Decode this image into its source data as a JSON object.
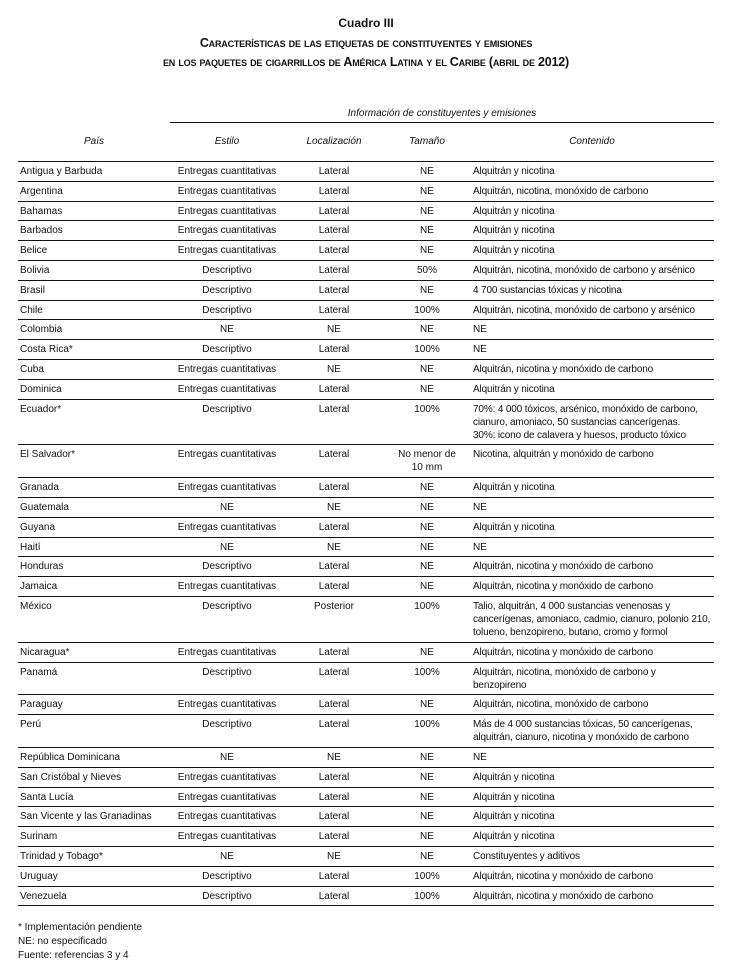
{
  "title": {
    "label": "Cuadro III",
    "line1": "Características de las etiquetas de constituyentes y emisiones",
    "line2": "en los paquetes de cigarrillos de América Latina y el Caribe (abril de 2012)"
  },
  "table": {
    "span_header": "Información de constituyentes y emisiones",
    "headers": {
      "pais": "País",
      "estilo": "Estilo",
      "localizacion": "Localización",
      "tamano": "Tamaño",
      "contenido": "Contenido"
    },
    "rows": [
      {
        "pais": "Antigua y Barbuda",
        "estilo": "Entregas cuantitativas",
        "localizacion": "Lateral",
        "tamano": [
          "NE"
        ],
        "contenido": [
          "Alquitrán y nicotina"
        ]
      },
      {
        "pais": "Argentina",
        "estilo": "Entregas cuantitativas",
        "localizacion": "Lateral",
        "tamano": [
          "NE"
        ],
        "contenido": [
          "Alquitrán, nicotina, monóxido de carbono"
        ]
      },
      {
        "pais": "Bahamas",
        "estilo": "Entregas cuantitativas",
        "localizacion": "Lateral",
        "tamano": [
          "NE"
        ],
        "contenido": [
          "Alquitrán y nicotina"
        ]
      },
      {
        "pais": "Barbados",
        "estilo": "Entregas cuantitativas",
        "localizacion": "Lateral",
        "tamano": [
          "NE"
        ],
        "contenido": [
          "Alquitrán y nicotina"
        ]
      },
      {
        "pais": "Belice",
        "estilo": "Entregas cuantitativas",
        "localizacion": "Lateral",
        "tamano": [
          "NE"
        ],
        "contenido": [
          "Alquitrán y nicotina"
        ]
      },
      {
        "pais": "Bolivia",
        "estilo": "Descriptivo",
        "localizacion": "Lateral",
        "tamano": [
          "50%"
        ],
        "contenido": [
          "Alquitrán, nicotina, monóxido de carbono y arsénico"
        ]
      },
      {
        "pais": "Brasil",
        "estilo": "Descriptivo",
        "localizacion": "Lateral",
        "tamano": [
          "NE"
        ],
        "contenido": [
          "4 700 sustancias tóxicas y nicotina"
        ]
      },
      {
        "pais": "Chile",
        "estilo": "Descriptivo",
        "localizacion": "Lateral",
        "tamano": [
          "100%"
        ],
        "contenido": [
          "Alquitrán, nicotina, monóxido de carbono y arsénico"
        ]
      },
      {
        "pais": "Colombia",
        "estilo": "NE",
        "localizacion": "NE",
        "tamano": [
          "NE"
        ],
        "contenido": [
          "NE"
        ]
      },
      {
        "pais": "Costa Rica*",
        "estilo": "Descriptivo",
        "localizacion": "Lateral",
        "tamano": [
          "100%"
        ],
        "contenido": [
          "NE"
        ]
      },
      {
        "pais": "Cuba",
        "estilo": "Entregas cuantitativas",
        "localizacion": "NE",
        "tamano": [
          "NE"
        ],
        "contenido": [
          "Alquitrán, nicotina y monóxido de carbono"
        ]
      },
      {
        "pais": "Dominica",
        "estilo": "Entregas cuantitativas",
        "localizacion": "Lateral",
        "tamano": [
          "NE"
        ],
        "contenido": [
          "Alquitrán y nicotina"
        ]
      },
      {
        "pais": "Ecuador*",
        "estilo": "Descriptivo",
        "localizacion": "Lateral",
        "tamano": [
          "100%"
        ],
        "contenido": [
          "70%: 4 000 tóxicos, arsénico, monóxido de carbono,",
          "cianuro, amoniaco, 50 sustancias cancerígenas.",
          "30%: icono de calavera y huesos, producto tóxico"
        ]
      },
      {
        "pais": "El Salvador*",
        "estilo": "Entregas cuantitativas",
        "localizacion": "Lateral",
        "tamano": [
          "No menor de",
          "10 mm"
        ],
        "contenido": [
          "Nicotina, alquitrán y monóxido de carbono"
        ]
      },
      {
        "pais": "Granada",
        "estilo": "Entregas cuantitativas",
        "localizacion": "Lateral",
        "tamano": [
          "NE"
        ],
        "contenido": [
          "Alquitrán y nicotina"
        ]
      },
      {
        "pais": "Guatemala",
        "estilo": "NE",
        "localizacion": "NE",
        "tamano": [
          "NE"
        ],
        "contenido": [
          "NE"
        ]
      },
      {
        "pais": "Guyana",
        "estilo": "Entregas cuantitativas",
        "localizacion": "Lateral",
        "tamano": [
          "NE"
        ],
        "contenido": [
          "Alquitrán y nicotina"
        ]
      },
      {
        "pais": "Haití",
        "estilo": "NE",
        "localizacion": "NE",
        "tamano": [
          "NE"
        ],
        "contenido": [
          "NE"
        ]
      },
      {
        "pais": "Honduras",
        "estilo": "Descriptivo",
        "localizacion": "Lateral",
        "tamano": [
          "NE"
        ],
        "contenido": [
          "Alquitrán, nicotina y monóxido de carbono"
        ]
      },
      {
        "pais": "Jamaica",
        "estilo": "Entregas cuantitativas",
        "localizacion": "Lateral",
        "tamano": [
          "NE"
        ],
        "contenido": [
          "Alquitrán, nicotina y monóxido de carbono"
        ]
      },
      {
        "pais": "México",
        "estilo": "Descriptivo",
        "localizacion": "Posterior",
        "tamano": [
          "100%"
        ],
        "contenido": [
          "Talio, alquitrán, 4 000 sustancias venenosas y",
          "cancerígenas, amoniaco, cadmio, cianuro, polonio 210,",
          "tolueno, benzopireno, butano, cromo y formol"
        ]
      },
      {
        "pais": "Nicaragua*",
        "estilo": "Entregas cuantitativas",
        "localizacion": "Lateral",
        "tamano": [
          "NE"
        ],
        "contenido": [
          "Alquitrán, nicotina y monóxido de carbono"
        ]
      },
      {
        "pais": "Panamá",
        "estilo": "Descriptivo",
        "localizacion": "Lateral",
        "tamano": [
          "100%"
        ],
        "contenido": [
          "Alquitrán, nicotina, monóxido de carbono y",
          "benzopireno"
        ]
      },
      {
        "pais": "Paraguay",
        "estilo": "Entregas cuantitativas",
        "localizacion": "Lateral",
        "tamano": [
          "NE"
        ],
        "contenido": [
          "Alquitrán, nicotina, monóxido de carbono"
        ]
      },
      {
        "pais": "Perú",
        "estilo": "Descriptivo",
        "localizacion": "Lateral",
        "tamano": [
          "100%"
        ],
        "contenido": [
          "Más de 4 000 sustancias tóxicas, 50 cancerígenas,",
          "alquitrán, cianuro, nicotina y monóxido de carbono"
        ]
      },
      {
        "pais": "República Dominicana",
        "estilo": "NE",
        "localizacion": "NE",
        "tamano": [
          "NE"
        ],
        "contenido": [
          "NE"
        ]
      },
      {
        "pais": "San Cristóbal y Nieves",
        "estilo": "Entregas cuantitativas",
        "localizacion": "Lateral",
        "tamano": [
          "NE"
        ],
        "contenido": [
          "Alquitrán y nicotina"
        ]
      },
      {
        "pais": "Santa Lucía",
        "estilo": "Entregas cuantitativas",
        "localizacion": "Lateral",
        "tamano": [
          "NE"
        ],
        "contenido": [
          "Alquitrán y nicotina"
        ]
      },
      {
        "pais": "San Vicente y las Granadinas",
        "estilo": "Entregas cuantitativas",
        "localizacion": "Lateral",
        "tamano": [
          "NE"
        ],
        "contenido": [
          "Alquitrán y nicotina"
        ]
      },
      {
        "pais": "Surinam",
        "estilo": "Entregas cuantitativas",
        "localizacion": "Lateral",
        "tamano": [
          "NE"
        ],
        "contenido": [
          "Alquitrán y nicotina"
        ]
      },
      {
        "pais": "Trinidad y Tobago*",
        "estilo": "NE",
        "localizacion": "NE",
        "tamano": [
          "NE"
        ],
        "contenido": [
          "Constituyentes y aditivos"
        ]
      },
      {
        "pais": "Uruguay",
        "estilo": "Descriptivo",
        "localizacion": "Lateral",
        "tamano": [
          "100%"
        ],
        "contenido": [
          "Alquitrán, nicotina y monóxido de carbono"
        ]
      },
      {
        "pais": "Venezuela",
        "estilo": "Descriptivo",
        "localizacion": "Lateral",
        "tamano": [
          "100%"
        ],
        "contenido": [
          "Alquitrán, nicotina y monóxido de carbono"
        ]
      }
    ]
  },
  "footnotes": [
    "* Implementación pendiente",
    "NE: no especificado",
    "Fuente: referencias 3 y  4"
  ]
}
